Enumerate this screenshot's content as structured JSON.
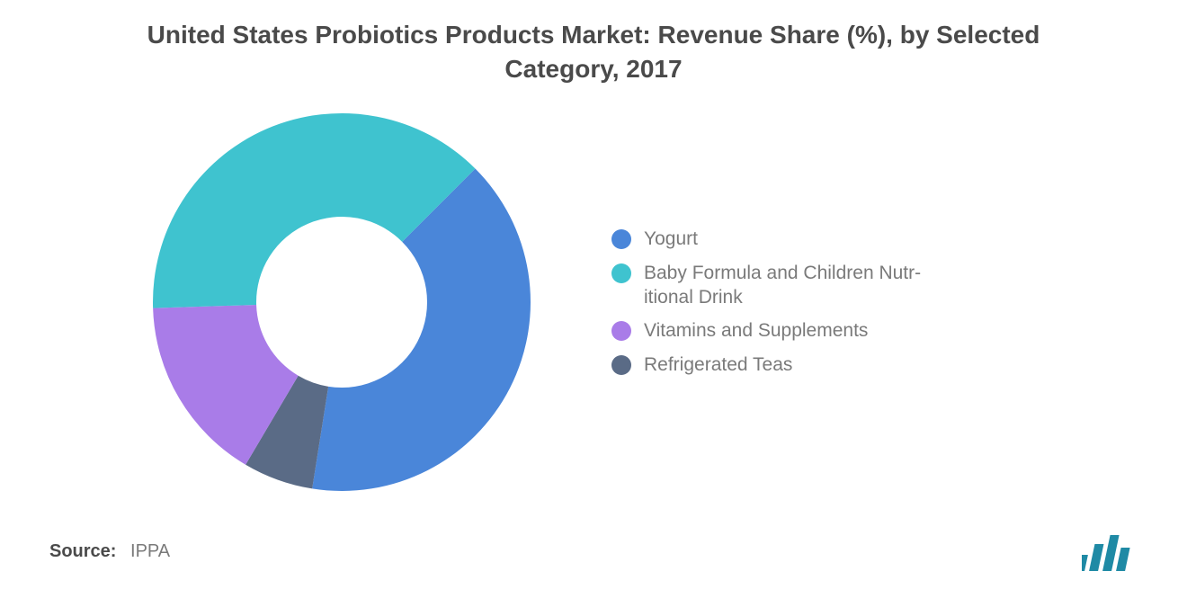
{
  "chart": {
    "type": "donut",
    "title": "United States Probiotics Products Market: Revenue Share (%), by Selected Category, 2017",
    "title_fontsize": 28,
    "title_color": "#4a4a4a",
    "background_color": "#ffffff",
    "outer_radius": 210,
    "inner_radius": 95,
    "start_angle_deg": -45,
    "slices": [
      {
        "label": "Yogurt",
        "value": 40,
        "color": "#4a86d9"
      },
      {
        "label": "Refrigerated Teas",
        "value": 6,
        "color": "#5a6b86"
      },
      {
        "label": "Vitamins and Supplements",
        "value": 16,
        "color": "#a97ce8"
      },
      {
        "label": "Baby Formula and Children Nutr-\nitional Drink",
        "value": 38,
        "color": "#3fc3cf"
      }
    ],
    "legend_order": [
      0,
      3,
      2,
      1
    ],
    "legend_fontsize": 21,
    "legend_text_color": "#7a7a7a",
    "legend_dot_radius": 11
  },
  "source": {
    "label": "Source:",
    "value": "IPPA",
    "label_color": "#4a4a4a",
    "value_color": "#7a7a7a",
    "fontsize": 20
  },
  "logo": {
    "name": "MI logo",
    "bar_color": "#1f8aa5",
    "bars": 4
  }
}
